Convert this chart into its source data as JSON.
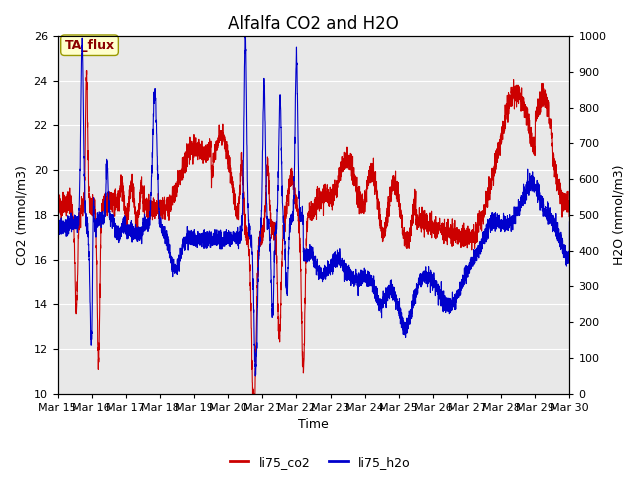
{
  "title": "Alfalfa CO2 and H2O",
  "xlabel": "Time",
  "ylabel_left": "CO2 (mmol/m3)",
  "ylabel_right": "H2O (mmol/m3)",
  "annotation": "TA_flux",
  "legend_labels": [
    "li75_co2",
    "li75_h2o"
  ],
  "co2_color": "#cc0000",
  "h2o_color": "#0000cc",
  "figure_bg_color": "#ffffff",
  "plot_bg_color": "#e8e8e8",
  "grid_color": "#ffffff",
  "ylim_left": [
    10,
    26
  ],
  "ylim_right": [
    0,
    1000
  ],
  "yticks_left": [
    10,
    12,
    14,
    16,
    18,
    20,
    22,
    24,
    26
  ],
  "yticks_right": [
    0,
    100,
    200,
    300,
    400,
    500,
    600,
    700,
    800,
    900,
    1000
  ],
  "x_start": 15,
  "x_end": 30,
  "x_ticks": [
    15,
    16,
    17,
    18,
    19,
    20,
    21,
    22,
    23,
    24,
    25,
    26,
    27,
    28,
    29,
    30
  ],
  "x_tick_labels": [
    "Mar 15",
    "Mar 16",
    "Mar 17",
    "Mar 18",
    "Mar 19",
    "Mar 20",
    "Mar 21",
    "Mar 22",
    "Mar 23",
    "Mar 24",
    "Mar 25",
    "Mar 26",
    "Mar 27",
    "Mar 28",
    "Mar 29",
    "Mar 30"
  ],
  "title_fontsize": 12,
  "axis_label_fontsize": 9,
  "tick_fontsize": 8,
  "legend_fontsize": 9,
  "annotation_fontsize": 9,
  "line_width": 0.8
}
